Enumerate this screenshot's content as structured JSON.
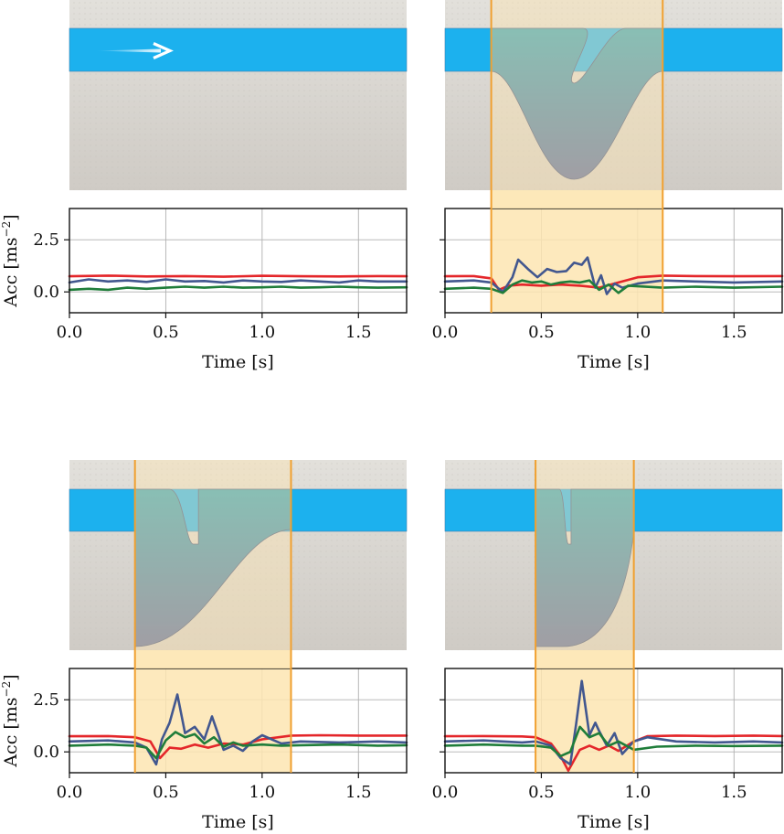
{
  "colors": {
    "red": "#e4262a",
    "blue": "#42578f",
    "green": "#1f7d3a",
    "highlight_fill": "#fde5b1",
    "highlight_edge": "#f0a030",
    "water": "#1cb1ee",
    "ground": "#dad7d1"
  },
  "chart_data": [
    {
      "type": "line",
      "position": "top-left",
      "xlabel": "Time [s]",
      "ylabel": "Acc [ms",
      "ylabel_exp": "−2",
      "ylabel_close": "]",
      "xlim": [
        0,
        1.75
      ],
      "ylim": [
        -1.0,
        4.0
      ],
      "xticks": [
        "0.0",
        "0.5",
        "1.0",
        "1.5"
      ],
      "yticks": [
        "0.0",
        "2.5"
      ],
      "highlight": null,
      "series": [
        {
          "color": "red",
          "x": [
            0.0,
            0.2,
            0.4,
            0.6,
            0.8,
            1.0,
            1.2,
            1.4,
            1.6,
            1.75
          ],
          "y": [
            0.75,
            0.78,
            0.74,
            0.76,
            0.73,
            0.77,
            0.75,
            0.74,
            0.76,
            0.75
          ]
        },
        {
          "color": "blue",
          "x": [
            0.0,
            0.1,
            0.2,
            0.3,
            0.4,
            0.5,
            0.6,
            0.7,
            0.8,
            0.9,
            1.0,
            1.1,
            1.2,
            1.3,
            1.4,
            1.5,
            1.6,
            1.75
          ],
          "y": [
            0.45,
            0.6,
            0.5,
            0.55,
            0.48,
            0.6,
            0.5,
            0.52,
            0.45,
            0.55,
            0.5,
            0.48,
            0.55,
            0.5,
            0.45,
            0.55,
            0.5,
            0.5
          ]
        },
        {
          "color": "green",
          "x": [
            0.0,
            0.1,
            0.2,
            0.3,
            0.4,
            0.5,
            0.6,
            0.7,
            0.8,
            0.9,
            1.0,
            1.1,
            1.2,
            1.3,
            1.4,
            1.5,
            1.6,
            1.75
          ],
          "y": [
            0.1,
            0.15,
            0.1,
            0.2,
            0.15,
            0.2,
            0.25,
            0.2,
            0.25,
            0.2,
            0.22,
            0.25,
            0.2,
            0.22,
            0.25,
            0.22,
            0.2,
            0.22
          ]
        }
      ],
      "diagram": {
        "cut": null
      }
    },
    {
      "type": "line",
      "position": "top-right",
      "xlabel": "Time [s]",
      "xlim": [
        0,
        1.75
      ],
      "ylim": [
        -1.0,
        4.0
      ],
      "xticks": [
        "0.0",
        "0.5",
        "1.0",
        "1.5"
      ],
      "yticks": [
        "",
        ""
      ],
      "highlight": [
        0.24,
        1.13
      ],
      "series": [
        {
          "color": "red",
          "x": [
            0.0,
            0.15,
            0.24,
            0.28,
            0.33,
            0.4,
            0.5,
            0.6,
            0.7,
            0.8,
            0.9,
            1.0,
            1.13,
            1.3,
            1.5,
            1.75
          ],
          "y": [
            0.75,
            0.76,
            0.65,
            0.1,
            0.3,
            0.35,
            0.3,
            0.35,
            0.3,
            0.2,
            0.45,
            0.7,
            0.78,
            0.76,
            0.75,
            0.76
          ]
        },
        {
          "color": "blue",
          "x": [
            0.0,
            0.15,
            0.24,
            0.3,
            0.35,
            0.38,
            0.43,
            0.48,
            0.53,
            0.58,
            0.63,
            0.67,
            0.71,
            0.74,
            0.78,
            0.81,
            0.84,
            0.88,
            0.92,
            1.0,
            1.13,
            1.3,
            1.5,
            1.75
          ],
          "y": [
            0.5,
            0.55,
            0.45,
            0.0,
            0.7,
            1.55,
            1.1,
            0.7,
            1.1,
            0.95,
            1.0,
            1.4,
            1.3,
            1.65,
            0.2,
            0.8,
            -0.1,
            0.4,
            0.2,
            0.4,
            0.55,
            0.5,
            0.45,
            0.5
          ]
        },
        {
          "color": "green",
          "x": [
            0.0,
            0.15,
            0.24,
            0.3,
            0.35,
            0.4,
            0.45,
            0.5,
            0.55,
            0.6,
            0.65,
            0.7,
            0.75,
            0.8,
            0.85,
            0.9,
            0.95,
            1.13,
            1.3,
            1.5,
            1.75
          ],
          "y": [
            0.15,
            0.2,
            0.15,
            -0.05,
            0.35,
            0.55,
            0.45,
            0.5,
            0.35,
            0.45,
            0.5,
            0.45,
            0.55,
            0.1,
            0.35,
            -0.05,
            0.3,
            0.2,
            0.25,
            0.2,
            0.25
          ]
        }
      ],
      "diagram": {
        "cut": "v"
      }
    },
    {
      "type": "line",
      "position": "bottom-left",
      "xlabel": "Time [s]",
      "ylabel": "Acc [ms",
      "ylabel_exp": "−2",
      "ylabel_close": "]",
      "xlim": [
        0,
        1.75
      ],
      "ylim": [
        -1.0,
        4.0
      ],
      "xticks": [
        "0.0",
        "0.5",
        "1.0",
        "1.5"
      ],
      "yticks": [
        "0.0",
        "2.5"
      ],
      "highlight": [
        0.34,
        1.15
      ],
      "series": [
        {
          "color": "red",
          "x": [
            0.0,
            0.2,
            0.34,
            0.42,
            0.47,
            0.52,
            0.58,
            0.65,
            0.72,
            0.8,
            0.9,
            1.0,
            1.15,
            1.3,
            1.5,
            1.75
          ],
          "y": [
            0.75,
            0.76,
            0.7,
            0.5,
            -0.3,
            0.2,
            0.15,
            0.35,
            0.2,
            0.4,
            0.35,
            0.6,
            0.78,
            0.8,
            0.78,
            0.78
          ]
        },
        {
          "color": "blue",
          "x": [
            0.0,
            0.2,
            0.34,
            0.4,
            0.45,
            0.48,
            0.52,
            0.56,
            0.6,
            0.65,
            0.7,
            0.74,
            0.8,
            0.85,
            0.9,
            0.95,
            1.0,
            1.1,
            1.2,
            1.4,
            1.6,
            1.75
          ],
          "y": [
            0.5,
            0.55,
            0.45,
            0.2,
            -0.6,
            0.6,
            1.4,
            2.75,
            0.9,
            1.2,
            0.6,
            1.7,
            0.1,
            0.3,
            0.05,
            0.5,
            0.8,
            0.4,
            0.5,
            0.45,
            0.5,
            0.45
          ]
        },
        {
          "color": "green",
          "x": [
            0.0,
            0.2,
            0.34,
            0.4,
            0.45,
            0.5,
            0.55,
            0.6,
            0.65,
            0.7,
            0.75,
            0.8,
            0.85,
            0.9,
            1.0,
            1.1,
            1.2,
            1.4,
            1.6,
            1.75
          ],
          "y": [
            0.3,
            0.35,
            0.3,
            0.2,
            -0.3,
            0.55,
            0.95,
            0.7,
            0.85,
            0.4,
            0.7,
            0.25,
            0.45,
            0.3,
            0.35,
            0.3,
            0.32,
            0.35,
            0.3,
            0.32
          ]
        }
      ],
      "diagram": {
        "cut": "notch-left"
      }
    },
    {
      "type": "line",
      "position": "bottom-right",
      "xlabel": "Time [s]",
      "xlim": [
        0,
        1.75
      ],
      "ylim": [
        -1.0,
        4.0
      ],
      "xticks": [
        "0.0",
        "0.5",
        "1.0",
        "1.5"
      ],
      "yticks": [
        "",
        ""
      ],
      "highlight": [
        0.47,
        0.98
      ],
      "series": [
        {
          "color": "red",
          "x": [
            0.0,
            0.2,
            0.4,
            0.47,
            0.55,
            0.6,
            0.64,
            0.7,
            0.75,
            0.8,
            0.85,
            0.9,
            0.98,
            1.05,
            1.2,
            1.4,
            1.6,
            1.75
          ],
          "y": [
            0.75,
            0.76,
            0.74,
            0.7,
            0.4,
            -0.2,
            -0.9,
            0.1,
            0.3,
            0.1,
            0.3,
            0.05,
            0.5,
            0.75,
            0.78,
            0.76,
            0.78,
            0.76
          ]
        },
        {
          "color": "blue",
          "x": [
            0.0,
            0.2,
            0.4,
            0.47,
            0.55,
            0.6,
            0.65,
            0.68,
            0.71,
            0.75,
            0.78,
            0.8,
            0.84,
            0.88,
            0.92,
            0.98,
            1.05,
            1.2,
            1.4,
            1.6,
            1.75
          ],
          "y": [
            0.5,
            0.55,
            0.45,
            0.5,
            0.3,
            -0.3,
            -0.6,
            1.3,
            3.4,
            0.8,
            1.4,
            1.0,
            0.3,
            0.9,
            -0.1,
            0.5,
            0.7,
            0.5,
            0.45,
            0.5,
            0.45
          ]
        },
        {
          "color": "green",
          "x": [
            0.0,
            0.2,
            0.4,
            0.47,
            0.55,
            0.6,
            0.65,
            0.7,
            0.75,
            0.8,
            0.85,
            0.9,
            0.98,
            1.1,
            1.3,
            1.5,
            1.75
          ],
          "y": [
            0.3,
            0.35,
            0.3,
            0.3,
            0.2,
            -0.2,
            0.0,
            1.2,
            0.7,
            0.9,
            0.3,
            0.5,
            0.1,
            0.25,
            0.3,
            0.28,
            0.3
          ]
        }
      ],
      "diagram": {
        "cut": "notch-right"
      }
    }
  ]
}
